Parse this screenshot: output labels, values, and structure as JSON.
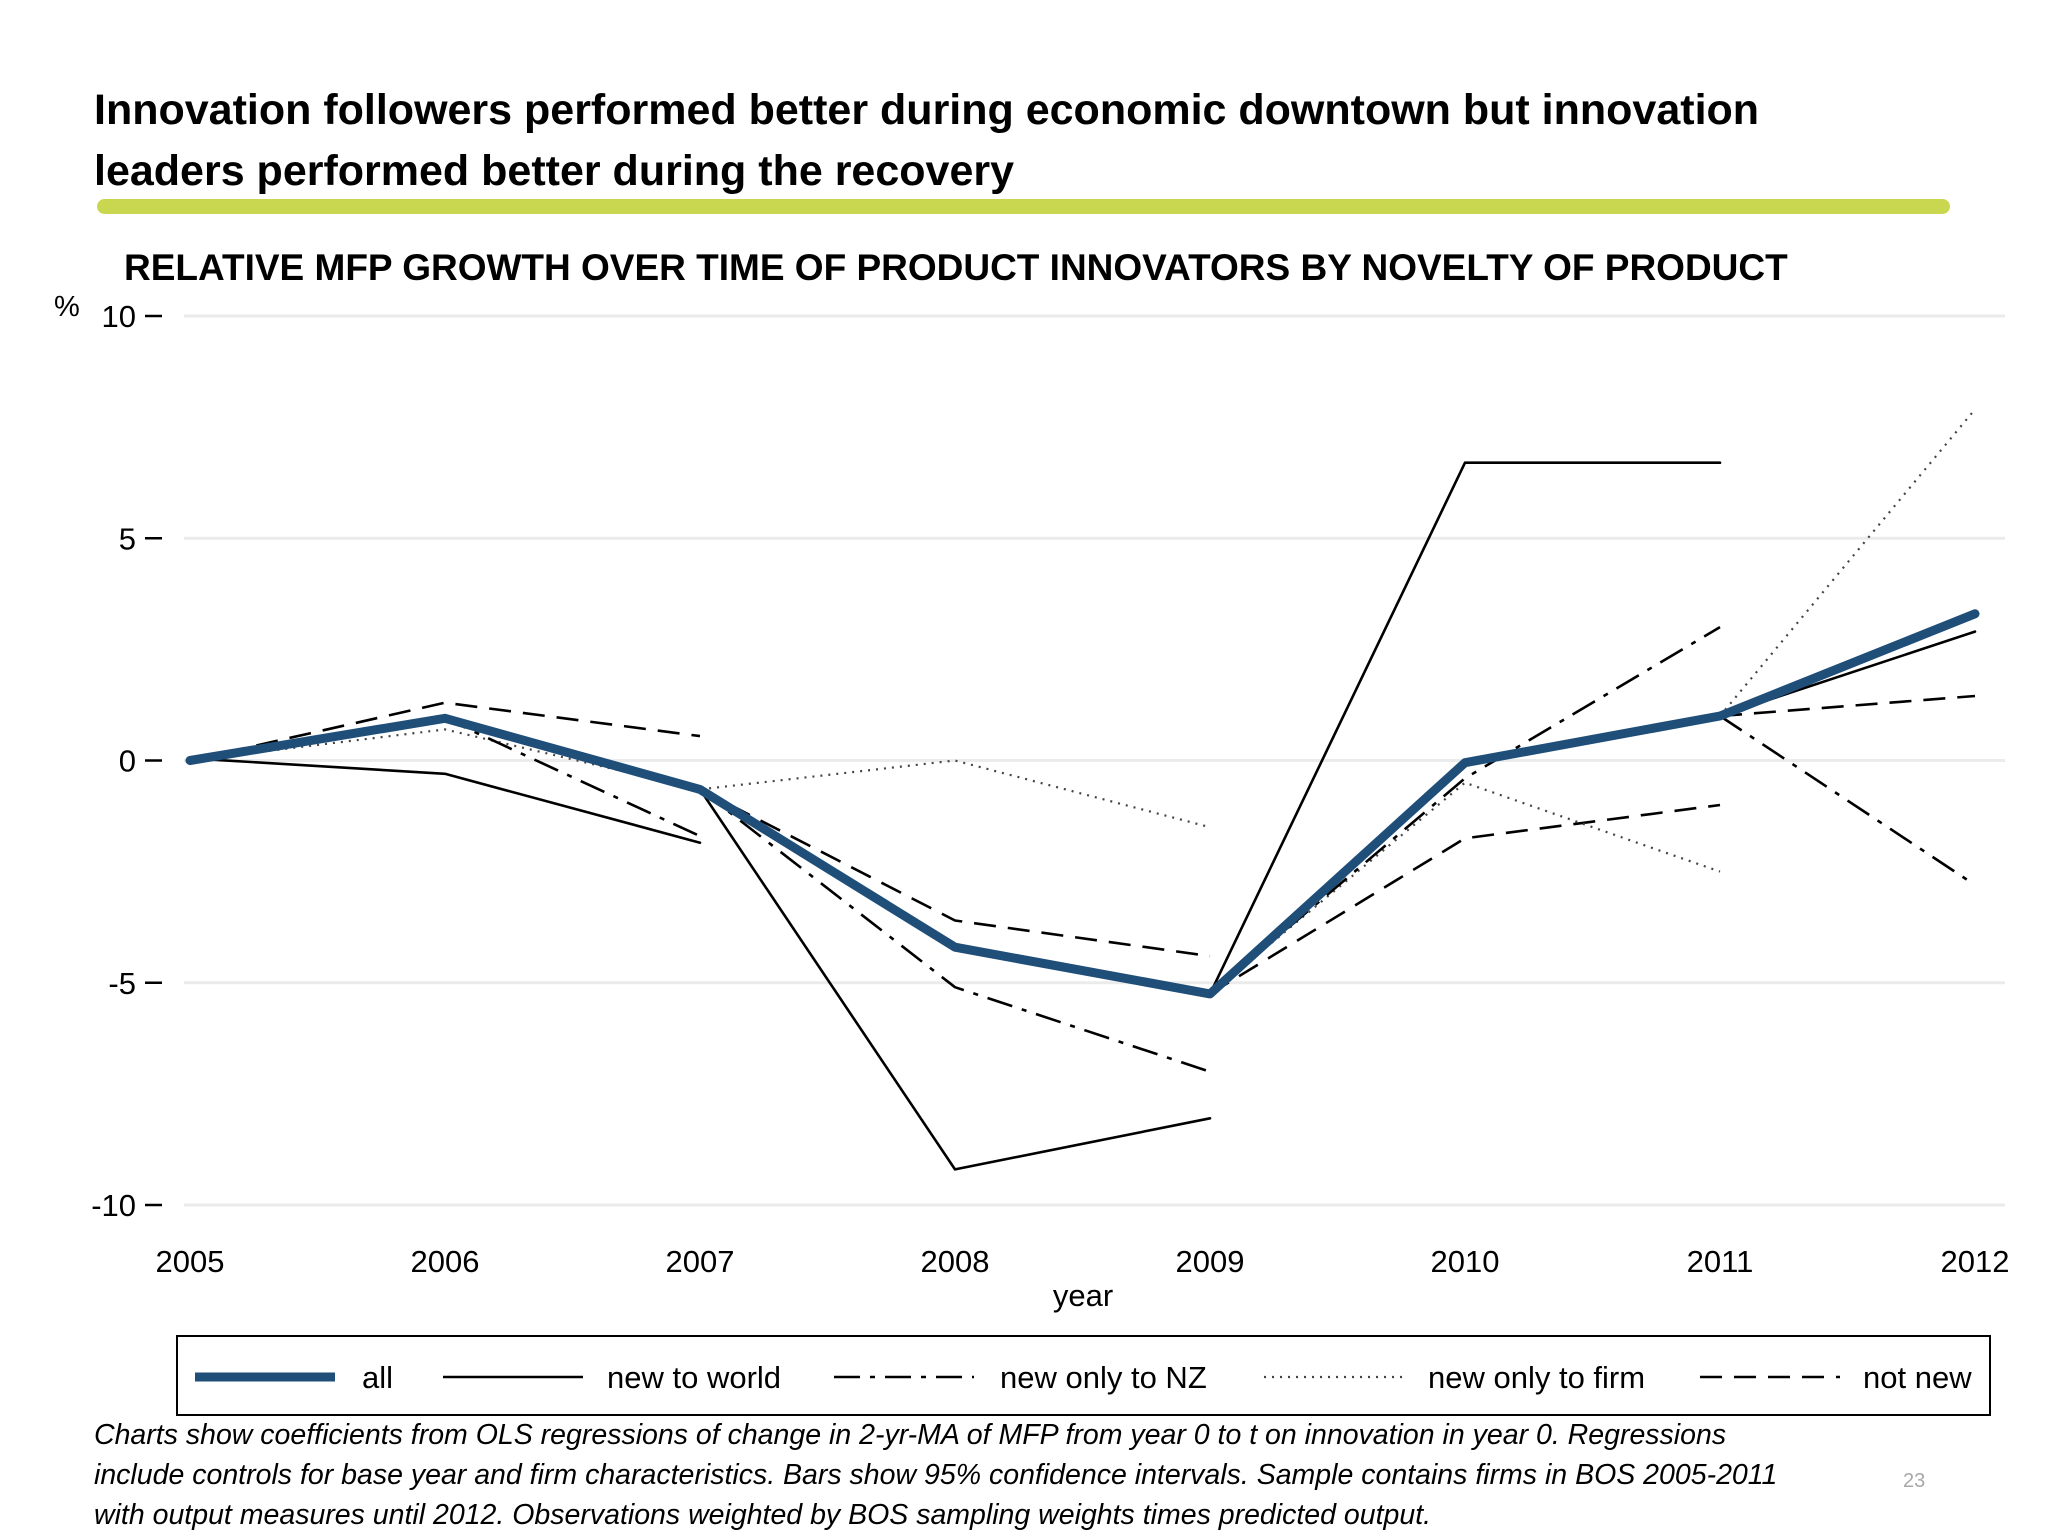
{
  "slide": {
    "title_lines": [
      "Innovation followers performed better during economic downtown but innovation",
      "leaders performed better during the recovery"
    ],
    "accent_color": "#c9d64f",
    "footnote_lines": [
      "Charts show coefficients from OLS regressions of change in 2-yr-MA of MFP from year 0 to t on innovation in year 0. Regressions",
      "include controls for base year and firm characteristics. Bars show 95% confidence intervals. Sample contains firms in BOS 2005-2011",
      "with output measures until 2012. Observations weighted by BOS sampling weights times predicted output."
    ],
    "page_number": "23"
  },
  "chart_data": {
    "type": "line",
    "title": "RELATIVE MFP GROWTH OVER TIME OF PRODUCT INNOVATORS BY NOVELTY OF PRODUCT",
    "xlabel": "year",
    "ylabel": "%",
    "x": [
      2005,
      2006,
      2007,
      2008,
      2009,
      2010,
      2011,
      2012
    ],
    "xlim": [
      2005,
      2012
    ],
    "ylim": [
      -10,
      10
    ],
    "yticks": [
      -10,
      -5,
      0,
      5,
      10
    ],
    "ytick_labels": [
      "-10",
      "-5",
      "0",
      "5",
      "10"
    ],
    "xtick_labels": [
      "2005",
      "2006",
      "2007",
      "2008",
      "2009",
      "2010",
      "2011",
      "2012"
    ],
    "grid": true,
    "legend_position": "bottom",
    "series": [
      {
        "name": "all",
        "style": "thick-solid",
        "color": "#1f4e79",
        "segments": [
          [
            [
              2005,
              0.0
            ],
            [
              2006,
              0.95
            ],
            [
              2007,
              -0.65
            ],
            [
              2008,
              -4.2
            ],
            [
              2009,
              -5.25
            ],
            [
              2010,
              -0.05
            ],
            [
              2011,
              1.0
            ],
            [
              2012,
              3.3
            ]
          ]
        ]
      },
      {
        "name": "new to world",
        "style": "solid",
        "color": "#000000",
        "segments": [
          [
            [
              2005,
              0.05
            ],
            [
              2006,
              -0.3
            ],
            [
              2007,
              -1.85
            ]
          ],
          [
            [
              2007,
              -0.65
            ],
            [
              2008,
              -9.2
            ],
            [
              2009,
              -8.05
            ]
          ],
          [
            [
              2009,
              -5.25
            ],
            [
              2010,
              6.7
            ],
            [
              2011,
              6.7
            ]
          ],
          [
            [
              2011,
              1.0
            ],
            [
              2012,
              2.9
            ]
          ]
        ]
      },
      {
        "name": "new only to NZ",
        "style": "dash-dot",
        "color": "#000000",
        "segments": [
          [
            [
              2005,
              0.0
            ],
            [
              2006,
              0.95
            ],
            [
              2007,
              -1.7
            ]
          ],
          [
            [
              2007,
              -0.65
            ],
            [
              2008,
              -5.1
            ],
            [
              2009,
              -7.0
            ]
          ],
          [
            [
              2009,
              -5.25
            ],
            [
              2010,
              -0.4
            ],
            [
              2011,
              3.0
            ]
          ],
          [
            [
              2011,
              1.0
            ],
            [
              2012,
              -2.8
            ]
          ]
        ]
      },
      {
        "name": "new only to firm",
        "style": "dotted",
        "color": "#444444",
        "segments": [
          [
            [
              2005,
              0.0
            ],
            [
              2006,
              0.7
            ],
            [
              2007,
              -0.65
            ],
            [
              2008,
              0.0
            ],
            [
              2009,
              -1.5
            ]
          ],
          [
            [
              2009,
              -5.25
            ],
            [
              2010,
              -0.5
            ],
            [
              2011,
              -2.5
            ]
          ],
          [
            [
              2011,
              1.0
            ],
            [
              2012,
              7.9
            ]
          ]
        ]
      },
      {
        "name": "not new",
        "style": "dashed",
        "color": "#000000",
        "segments": [
          [
            [
              2005,
              0.0
            ],
            [
              2006,
              1.3
            ],
            [
              2007,
              0.55
            ]
          ],
          [
            [
              2007,
              -0.65
            ],
            [
              2008,
              -3.6
            ],
            [
              2009,
              -4.4
            ]
          ],
          [
            [
              2009,
              -5.25
            ],
            [
              2010,
              -1.75
            ],
            [
              2011,
              -1.0
            ]
          ],
          [
            [
              2011,
              1.0
            ],
            [
              2012,
              1.45
            ]
          ]
        ]
      }
    ]
  }
}
